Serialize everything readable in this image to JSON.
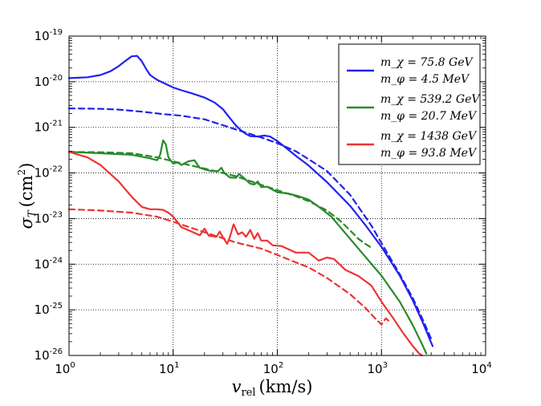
{
  "chart_data": {
    "type": "line",
    "xlabel": "v_rel (km/s)",
    "ylabel": "σ_T (cm²)",
    "xscale": "log",
    "yscale": "log",
    "xlim": [
      1,
      10000
    ],
    "ylim": [
      1e-26,
      1e-19
    ],
    "grid": true,
    "legend_position": "top-right",
    "x_ticks": [
      {
        "base": "10",
        "exp": "0",
        "value": 1
      },
      {
        "base": "10",
        "exp": "1",
        "value": 10
      },
      {
        "base": "10",
        "exp": "2",
        "value": 100
      },
      {
        "base": "10",
        "exp": "3",
        "value": 1000
      },
      {
        "base": "10",
        "exp": "4",
        "value": 10000
      }
    ],
    "y_ticks": [
      {
        "base": "10",
        "exp": "-19",
        "value": 1e-19
      },
      {
        "base": "10",
        "exp": "-20",
        "value": 1e-20
      },
      {
        "base": "10",
        "exp": "-21",
        "value": 1e-21
      },
      {
        "base": "10",
        "exp": "-22",
        "value": 1e-22
      },
      {
        "base": "10",
        "exp": "-23",
        "value": 1e-23
      },
      {
        "base": "10",
        "exp": "-24",
        "value": 1e-24
      },
      {
        "base": "10",
        "exp": "-25",
        "value": 1e-25
      },
      {
        "base": "10",
        "exp": "-26",
        "value": 1e-26
      }
    ],
    "series": [
      {
        "name": "blue-solid",
        "legend": true,
        "legend_line1": "m_χ = 75.8 GeV",
        "legend_line2": "m_φ = 4.5 MeV",
        "color": "#2222ee",
        "dash": "solid",
        "points": [
          [
            1,
            1.2e-20
          ],
          [
            1.5,
            1.25e-20
          ],
          [
            2,
            1.4e-20
          ],
          [
            2.5,
            1.7e-20
          ],
          [
            3,
            2.2e-20
          ],
          [
            3.5,
            2.9e-20
          ],
          [
            4,
            3.6e-20
          ],
          [
            4.5,
            3.7e-20
          ],
          [
            5,
            2.8e-20
          ],
          [
            5.5,
            1.9e-20
          ],
          [
            6,
            1.4e-20
          ],
          [
            7,
            1.1e-20
          ],
          [
            8,
            9.5e-21
          ],
          [
            10,
            7.5e-21
          ],
          [
            12,
            6.5e-21
          ],
          [
            15,
            5.6e-21
          ],
          [
            20,
            4.5e-21
          ],
          [
            25,
            3.5e-21
          ],
          [
            30,
            2.5e-21
          ],
          [
            35,
            1.6e-21
          ],
          [
            40,
            1.1e-21
          ],
          [
            45,
            8.5e-22
          ],
          [
            50,
            7.2e-22
          ],
          [
            55,
            6.4e-22
          ],
          [
            65,
            6.3e-22
          ],
          [
            75,
            6.6e-22
          ],
          [
            85,
            6.3e-22
          ],
          [
            100,
            5e-22
          ],
          [
            120,
            3.6e-22
          ],
          [
            150,
            2.4e-22
          ],
          [
            200,
            1.45e-22
          ],
          [
            300,
            6.3e-23
          ],
          [
            500,
            1.9e-23
          ],
          [
            700,
            7.2e-24
          ],
          [
            1000,
            2.4e-24
          ],
          [
            1500,
            5.6e-25
          ],
          [
            2000,
            1.6e-25
          ],
          [
            2500,
            5.2e-26
          ],
          [
            3000,
            1.9e-26
          ],
          [
            3100,
            1.6e-26
          ]
        ]
      },
      {
        "name": "blue-dashed",
        "legend": false,
        "color": "#2222ee",
        "dash": "dashed",
        "points": [
          [
            1,
            2.6e-21
          ],
          [
            2,
            2.55e-21
          ],
          [
            3,
            2.45e-21
          ],
          [
            5,
            2.2e-21
          ],
          [
            8,
            1.95e-21
          ],
          [
            12,
            1.8e-21
          ],
          [
            20,
            1.5e-21
          ],
          [
            40,
            9e-22
          ],
          [
            70,
            6e-22
          ],
          [
            100,
            4.5e-22
          ],
          [
            150,
            3e-22
          ],
          [
            200,
            2e-22
          ],
          [
            300,
            1.1e-22
          ],
          [
            500,
            3.3e-23
          ],
          [
            800,
            7e-24
          ],
          [
            1000,
            2.9e-24
          ],
          [
            1500,
            6e-25
          ],
          [
            2000,
            1.8e-25
          ],
          [
            2500,
            6e-26
          ],
          [
            3000,
            2.3e-26
          ]
        ]
      },
      {
        "name": "green-solid",
        "legend": true,
        "legend_line1": "m_χ = 539.2 GeV",
        "legend_line2": "m_φ = 20.7 MeV",
        "color": "#2a8a2a",
        "dash": "solid",
        "points": [
          [
            1,
            2.9e-22
          ],
          [
            2,
            2.7e-22
          ],
          [
            4,
            2.5e-22
          ],
          [
            6,
            2.1e-22
          ],
          [
            7,
            1.9e-22
          ],
          [
            7.5,
            2.5e-22
          ],
          [
            8,
            5.2e-22
          ],
          [
            8.5,
            4.2e-22
          ],
          [
            9,
            2.2e-22
          ],
          [
            10,
            1.6e-22
          ],
          [
            11,
            1.7e-22
          ],
          [
            12,
            1.5e-22
          ],
          [
            14,
            1.8e-22
          ],
          [
            16,
            1.9e-22
          ],
          [
            18,
            1.3e-22
          ],
          [
            20,
            1.2e-22
          ],
          [
            23,
            1.1e-22
          ],
          [
            27,
            1.1e-22
          ],
          [
            29,
            1.3e-22
          ],
          [
            31,
            1e-22
          ],
          [
            35,
            8e-23
          ],
          [
            40,
            7.8e-23
          ],
          [
            43,
            9.5e-23
          ],
          [
            47,
            8e-23
          ],
          [
            55,
            5.8e-23
          ],
          [
            60,
            5.6e-23
          ],
          [
            65,
            6.5e-23
          ],
          [
            70,
            4.9e-23
          ],
          [
            80,
            5e-23
          ],
          [
            90,
            4.3e-23
          ],
          [
            100,
            3.8e-23
          ],
          [
            130,
            3.5e-23
          ],
          [
            160,
            3.1e-23
          ],
          [
            200,
            2.6e-23
          ],
          [
            260,
            1.7e-23
          ],
          [
            330,
            1.1e-23
          ],
          [
            500,
            3.6e-24
          ],
          [
            700,
            1.45e-24
          ],
          [
            1000,
            5.6e-25
          ],
          [
            1500,
            1.5e-25
          ],
          [
            2000,
            4.6e-26
          ],
          [
            2500,
            1.6e-26
          ],
          [
            2700,
            1.1e-26
          ]
        ]
      },
      {
        "name": "green-dashed",
        "legend": false,
        "color": "#2a8a2a",
        "dash": "dashed",
        "points": [
          [
            1,
            2.9e-22
          ],
          [
            2,
            2.85e-22
          ],
          [
            4,
            2.7e-22
          ],
          [
            7,
            2.2e-22
          ],
          [
            10,
            1.8e-22
          ],
          [
            20,
            1.25e-22
          ],
          [
            40,
            8.5e-23
          ],
          [
            70,
            5.5e-23
          ],
          [
            100,
            4.2e-23
          ],
          [
            150,
            3.1e-23
          ],
          [
            200,
            2.4e-23
          ],
          [
            300,
            1.5e-23
          ],
          [
            400,
            9e-24
          ],
          [
            500,
            5.5e-24
          ],
          [
            600,
            3.6e-24
          ],
          [
            700,
            2.8e-24
          ],
          [
            800,
            2.3e-24
          ]
        ]
      },
      {
        "name": "red-solid",
        "legend": true,
        "legend_line1": "m_χ = 1438 GeV",
        "legend_line2": "m_φ = 93.8 MeV",
        "color": "#ee3333",
        "dash": "solid",
        "points": [
          [
            1,
            2.9e-22
          ],
          [
            1.5,
            2.2e-22
          ],
          [
            2,
            1.5e-22
          ],
          [
            3,
            6.5e-23
          ],
          [
            4,
            3e-23
          ],
          [
            5,
            1.8e-23
          ],
          [
            6,
            1.6e-23
          ],
          [
            7,
            1.6e-23
          ],
          [
            8,
            1.55e-23
          ],
          [
            9,
            1.35e-23
          ],
          [
            10,
            1.1e-23
          ],
          [
            12,
            6.5e-24
          ],
          [
            15,
            5.2e-24
          ],
          [
            18,
            4.3e-24
          ],
          [
            20,
            6e-24
          ],
          [
            22,
            4.2e-24
          ],
          [
            26,
            4e-24
          ],
          [
            28,
            5.2e-24
          ],
          [
            30,
            3.9e-24
          ],
          [
            33,
            2.8e-24
          ],
          [
            35,
            3.9e-24
          ],
          [
            38,
            7.5e-24
          ],
          [
            42,
            4.5e-24
          ],
          [
            46,
            5e-24
          ],
          [
            50,
            4e-24
          ],
          [
            55,
            5.6e-24
          ],
          [
            60,
            3.6e-24
          ],
          [
            65,
            4.8e-24
          ],
          [
            70,
            3.3e-24
          ],
          [
            80,
            3.3e-24
          ],
          [
            90,
            2.6e-24
          ],
          [
            110,
            2.5e-24
          ],
          [
            150,
            1.8e-24
          ],
          [
            200,
            1.8e-24
          ],
          [
            250,
            1.2e-24
          ],
          [
            300,
            1.4e-24
          ],
          [
            350,
            1.3e-24
          ],
          [
            450,
            7.5e-25
          ],
          [
            600,
            5.5e-25
          ],
          [
            800,
            3.4e-25
          ],
          [
            1000,
            1.5e-25
          ],
          [
            1300,
            6.5e-26
          ],
          [
            1600,
            3.2e-26
          ],
          [
            2000,
            1.6e-26
          ],
          [
            2300,
            1.1e-26
          ],
          [
            2450,
            1e-26
          ]
        ]
      },
      {
        "name": "red-dashed",
        "legend": false,
        "color": "#ee3333",
        "dash": "dashed",
        "points": [
          [
            1,
            1.6e-23
          ],
          [
            2,
            1.5e-23
          ],
          [
            4,
            1.35e-23
          ],
          [
            7,
            1.1e-23
          ],
          [
            10,
            8.5e-24
          ],
          [
            20,
            5e-24
          ],
          [
            40,
            3e-24
          ],
          [
            70,
            2.2e-24
          ],
          [
            100,
            1.6e-24
          ],
          [
            150,
            1.1e-24
          ],
          [
            200,
            8.5e-25
          ],
          [
            300,
            5e-25
          ],
          [
            500,
            2.2e-25
          ],
          [
            700,
            1.1e-25
          ],
          [
            900,
            6e-26
          ],
          [
            1000,
            4.8e-26
          ],
          [
            1100,
            6.5e-26
          ],
          [
            1200,
            5.5e-26
          ]
        ]
      }
    ]
  },
  "labels": {
    "xlabel_main": "v",
    "xlabel_sub": "rel",
    "xlabel_units": "(km/s)",
    "ylabel_main": "σ",
    "ylabel_sub": "T",
    "ylabel_units_open": "(cm",
    "ylabel_units_exp": "2",
    "ylabel_units_close": ")"
  }
}
